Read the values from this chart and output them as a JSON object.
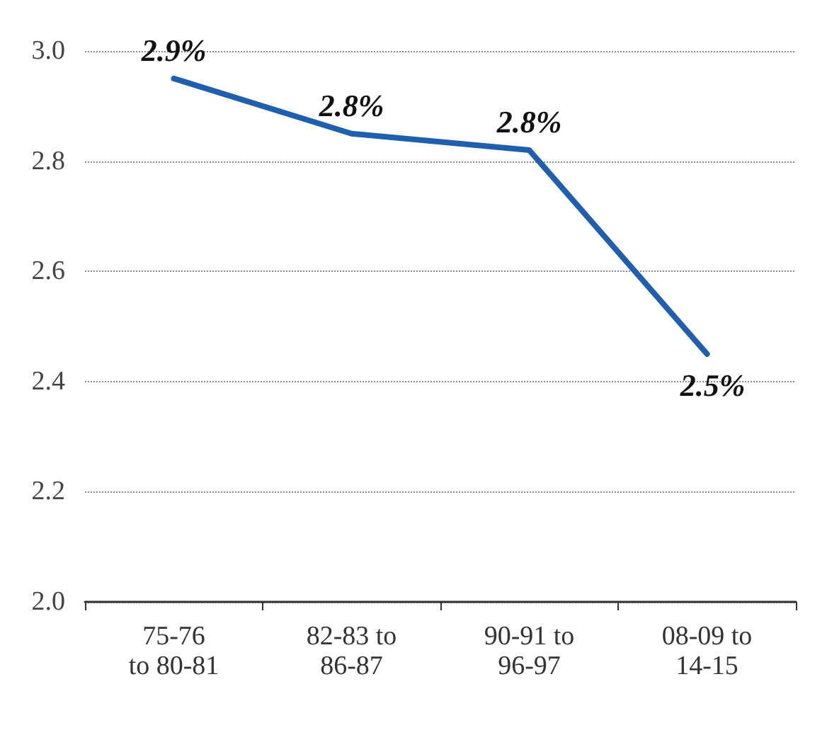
{
  "chart_data": {
    "type": "line",
    "categories": [
      "75-76\nto 80-81",
      "82-83 to\n86-87",
      "90-91 to\n96-97",
      "08-09 to\n14-15"
    ],
    "series": [
      {
        "color": "#1f5fad",
        "values": [
          2.95,
          2.85,
          2.82,
          2.45
        ],
        "value_labels": [
          "2.9%",
          "2.8%",
          "2.8%",
          "2.5%"
        ]
      }
    ],
    "ylim": [
      2.0,
      3.0
    ],
    "yticks": [
      {
        "value": 2.0,
        "label": "2.0"
      },
      {
        "value": 2.2,
        "label": "2.2"
      },
      {
        "value": 2.4,
        "label": "2.4"
      },
      {
        "value": 2.6,
        "label": "2.6"
      },
      {
        "value": 2.8,
        "label": "2.8"
      },
      {
        "value": 3.0,
        "label": "3.0"
      }
    ],
    "grid": "y",
    "marker": "none",
    "line_style": "solid"
  }
}
